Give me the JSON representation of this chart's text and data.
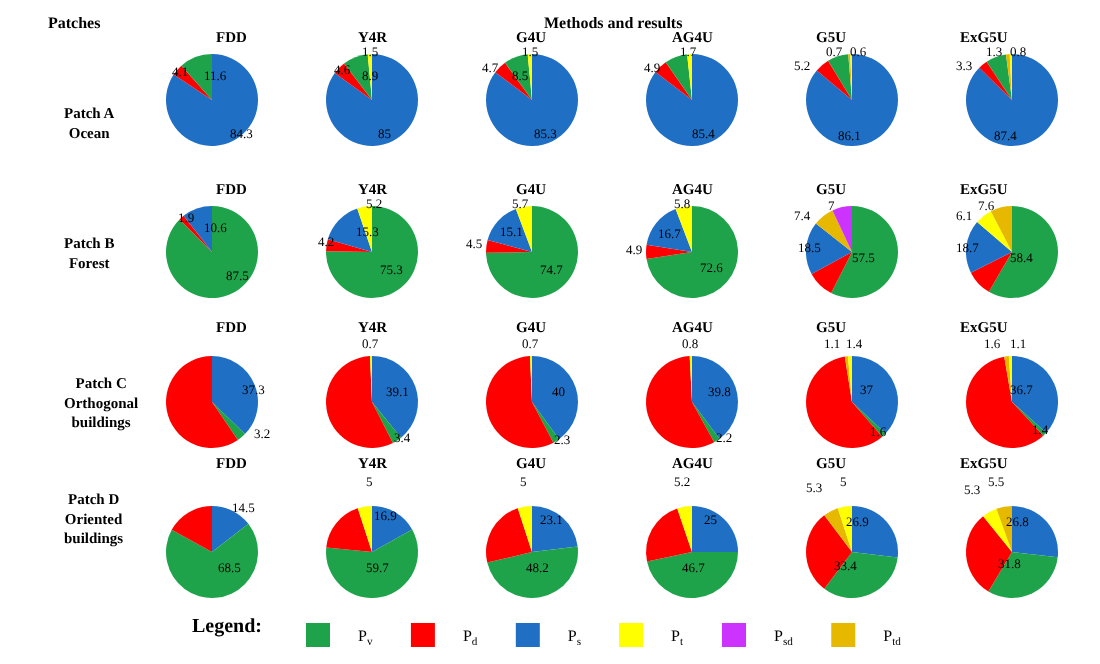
{
  "chart_data": [
    {
      "type": "other",
      "title": "Methods and results",
      "annotations": [
        "Patches",
        "Patch A\nOcean",
        "Patch B\nForest",
        "Patch C\nOrthogonal\nbuildings",
        "Patch D\nOriented\nbuildings"
      ]
    },
    {
      "type": "pie",
      "title": "FDD",
      "values": [
        84.3,
        4.1,
        11.6
      ],
      "colors": [
        "#1f6fc5",
        "#ff0000",
        "#1fa34a"
      ],
      "data_labels": true
    },
    {
      "type": "pie",
      "title": "Y4R",
      "values": [
        85,
        4.6,
        8.9,
        1.5
      ],
      "colors": [
        "#1f6fc5",
        "#ff0000",
        "#1fa34a",
        "#ffff00"
      ],
      "data_labels": true
    },
    {
      "type": "pie",
      "title": "G4U",
      "values": [
        85.3,
        4.7,
        8.5,
        1.5
      ],
      "colors": [
        "#1f6fc5",
        "#ff0000",
        "#1fa34a",
        "#ffff00"
      ],
      "data_labels": true
    },
    {
      "type": "pie",
      "title": "AG4U",
      "values": [
        85.4,
        4.9,
        8.0,
        1.7
      ],
      "colors": [
        "#1f6fc5",
        "#ff0000",
        "#1fa34a",
        "#ffff00"
      ],
      "value_labels": [
        "85.4",
        "4.9",
        null,
        "1.7"
      ]
    },
    {
      "type": "pie",
      "title": "G5U",
      "values": [
        86.1,
        5.2,
        7.4,
        0.7,
        0.6
      ],
      "colors": [
        "#1f6fc5",
        "#ff0000",
        "#1fa34a",
        "#e6b800",
        "#ffff00"
      ],
      "value_labels": [
        "86.1",
        "5.2",
        null,
        "0.7",
        "0.6"
      ]
    },
    {
      "type": "pie",
      "title": "ExG5U",
      "values": [
        87.4,
        3.3,
        7.2,
        1.3,
        0.8
      ],
      "colors": [
        "#1f6fc5",
        "#ff0000",
        "#1fa34a",
        "#e6b800",
        "#ffff00"
      ],
      "value_labels": [
        "87.4",
        "3.3",
        null,
        "1.3",
        "0.8"
      ]
    },
    {
      "type": "pie",
      "title": "FDD",
      "values": [
        87.5,
        1.9,
        10.6
      ],
      "colors": [
        "#1fa34a",
        "#ff0000",
        "#1f6fc5"
      ],
      "data_labels": true
    },
    {
      "type": "pie",
      "title": "Y4R",
      "values": [
        75.3,
        4.2,
        15.3,
        5.2
      ],
      "colors": [
        "#1fa34a",
        "#ff0000",
        "#1f6fc5",
        "#ffff00"
      ],
      "data_labels": true
    },
    {
      "type": "pie",
      "title": "G4U",
      "values": [
        74.7,
        4.5,
        15.1,
        5.7
      ],
      "colors": [
        "#1fa34a",
        "#ff0000",
        "#1f6fc5",
        "#ffff00"
      ],
      "data_labels": true
    },
    {
      "type": "pie",
      "title": "AG4U",
      "values": [
        72.6,
        4.9,
        16.7,
        5.8
      ],
      "colors": [
        "#1fa34a",
        "#ff0000",
        "#1f6fc5",
        "#ffff00"
      ],
      "data_labels": true
    },
    {
      "type": "pie",
      "title": "G5U",
      "values": [
        57.5,
        9.6,
        18.5,
        7.4,
        7
      ],
      "colors": [
        "#1fa34a",
        "#ff0000",
        "#1f6fc5",
        "#e6b800",
        "#cc33ff"
      ],
      "value_labels": [
        "57.5",
        null,
        "18.5",
        "7.4",
        "7"
      ]
    },
    {
      "type": "pie",
      "title": "ExG5U",
      "values": [
        58.4,
        9.2,
        18.7,
        6.1,
        7.6
      ],
      "colors": [
        "#1fa34a",
        "#ff0000",
        "#1f6fc5",
        "#ffff00",
        "#e6b800"
      ],
      "value_labels": [
        "58.4",
        null,
        "18.7",
        "6.1",
        "7.6"
      ]
    },
    {
      "type": "pie",
      "title": "FDD",
      "values": [
        37.3,
        3.2,
        59.5
      ],
      "colors": [
        "#1f6fc5",
        "#1fa34a",
        "#ff0000"
      ],
      "value_labels": [
        "37.3",
        "3.2",
        null
      ]
    },
    {
      "type": "pie",
      "title": "Y4R",
      "values": [
        39.1,
        3.4,
        56.8,
        0.7
      ],
      "colors": [
        "#1f6fc5",
        "#1fa34a",
        "#ff0000",
        "#ffff00"
      ],
      "value_labels": [
        "39.1",
        "3.4",
        null,
        "0.7"
      ]
    },
    {
      "type": "pie",
      "title": "G4U",
      "values": [
        40,
        2.3,
        57.0,
        0.7
      ],
      "colors": [
        "#1f6fc5",
        "#1fa34a",
        "#ff0000",
        "#ffff00"
      ],
      "value_labels": [
        "40",
        "2.3",
        null,
        "0.7"
      ]
    },
    {
      "type": "pie",
      "title": "AG4U",
      "values": [
        39.8,
        2.2,
        57.2,
        0.8
      ],
      "colors": [
        "#1f6fc5",
        "#1fa34a",
        "#ff0000",
        "#ffff00"
      ],
      "value_labels": [
        "39.8",
        "2.2",
        null,
        "0.8"
      ]
    },
    {
      "type": "pie",
      "title": "G5U",
      "values": [
        37,
        1.6,
        58.9,
        1.1,
        1.4
      ],
      "colors": [
        "#1f6fc5",
        "#1fa34a",
        "#ff0000",
        "#e6b800",
        "#ffff00"
      ],
      "value_labels": [
        "37",
        "1.6",
        null,
        "1.1",
        "1.4"
      ]
    },
    {
      "type": "pie",
      "title": "ExG5U",
      "values": [
        36.7,
        1.4,
        59.2,
        1.6,
        1.1
      ],
      "colors": [
        "#1f6fc5",
        "#1fa34a",
        "#ff0000",
        "#e6b800",
        "#ffff00"
      ],
      "value_labels": [
        "36.7",
        "1.4",
        null,
        "1.6",
        "1.1"
      ]
    },
    {
      "type": "pie",
      "title": "FDD",
      "values": [
        14.5,
        68.5,
        17.0
      ],
      "colors": [
        "#1f6fc5",
        "#1fa34a",
        "#ff0000"
      ],
      "value_labels": [
        "14.5",
        "68.5",
        null
      ]
    },
    {
      "type": "pie",
      "title": "Y4R",
      "values": [
        16.9,
        59.7,
        18.4,
        5
      ],
      "colors": [
        "#1f6fc5",
        "#1fa34a",
        "#ff0000",
        "#ffff00"
      ],
      "value_labels": [
        "16.9",
        "59.7",
        null,
        "5"
      ]
    },
    {
      "type": "pie",
      "title": "G4U",
      "values": [
        23.1,
        48.2,
        23.7,
        5
      ],
      "colors": [
        "#1f6fc5",
        "#1fa34a",
        "#ff0000",
        "#ffff00"
      ],
      "value_labels": [
        "23.1",
        "48.2",
        null,
        "5"
      ]
    },
    {
      "type": "pie",
      "title": "AG4U",
      "values": [
        25,
        46.7,
        23.1,
        5.2
      ],
      "colors": [
        "#1f6fc5",
        "#1fa34a",
        "#ff0000",
        "#ffff00"
      ],
      "value_labels": [
        "25",
        "46.7",
        null,
        "5.2"
      ]
    },
    {
      "type": "pie",
      "title": "G5U",
      "values": [
        26.9,
        33.4,
        29.4,
        5.3,
        5
      ],
      "colors": [
        "#1f6fc5",
        "#1fa34a",
        "#ff0000",
        "#e6b800",
        "#ffff00"
      ],
      "value_labels": [
        "26.9",
        "33.4",
        null,
        "5.3",
        "5"
      ]
    },
    {
      "type": "pie",
      "title": "ExG5U",
      "values": [
        26.8,
        31.8,
        30.6,
        5.3,
        5.5
      ],
      "colors": [
        "#1f6fc5",
        "#1fa34a",
        "#ff0000",
        "#ffff00",
        "#e6b800"
      ],
      "value_labels": [
        "26.8",
        "31.8",
        null,
        "5.3",
        "5.5"
      ]
    },
    {
      "type": "other",
      "legend_title": "Legend:",
      "categories": [
        "P$_{v}$",
        "P$_{d}$",
        "P$_{s}$",
        "P$_{t}$",
        "P$_{sd}$",
        "P$_{td}$"
      ],
      "colors": [
        "#1fa34a",
        "#ff0000",
        "#1f6fc5",
        "#ffff00",
        "#cc33ff",
        "#e6b800"
      ]
    }
  ]
}
